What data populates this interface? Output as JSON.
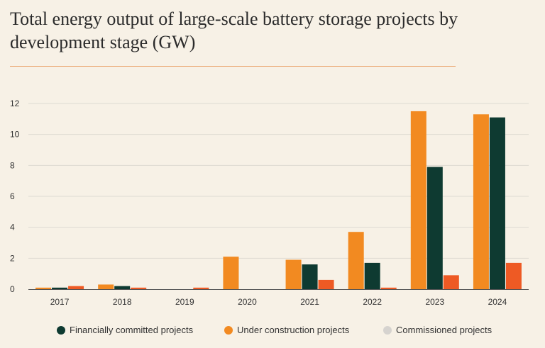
{
  "title": "Total energy output of large-scale battery storage projects by development stage (GW)",
  "colors": {
    "financially_committed": "#0e3a31",
    "under_construction": "#f28a21",
    "commissioned": "#ee5a24",
    "legend_commissioned": "#d6d3cf",
    "grid": "#dedad2",
    "axis": "#555555"
  },
  "chart_data": {
    "type": "bar",
    "title": "Total energy output of large-scale battery storage projects by development stage (GW)",
    "xlabel": "",
    "ylabel": "",
    "ylim": [
      0,
      12
    ],
    "yticks": [
      0,
      2,
      4,
      6,
      8,
      10,
      12
    ],
    "grid": true,
    "legend_position": "bottom",
    "categories": [
      "2017",
      "2018",
      "2019",
      "2020",
      "2021",
      "2022",
      "2023",
      "2024"
    ],
    "series": [
      {
        "name": "Under construction projects",
        "color_key": "under_construction",
        "values": [
          0.1,
          0.3,
          0,
          2.1,
          1.9,
          3.7,
          11.5,
          11.3
        ]
      },
      {
        "name": "Financially committed projects",
        "color_key": "financially_committed",
        "values": [
          0.1,
          0.2,
          0,
          0,
          1.6,
          1.7,
          7.9,
          11.1
        ]
      },
      {
        "name": "Commissioned projects",
        "color_key": "commissioned",
        "values": [
          0.2,
          0.1,
          0.1,
          0,
          0.6,
          0.1,
          0.9,
          1.7
        ]
      }
    ]
  },
  "legend": [
    {
      "label": "Financially committed projects",
      "color_key": "financially_committed"
    },
    {
      "label": "Under construction projects",
      "color_key": "under_construction"
    },
    {
      "label": "Commissioned projects",
      "color_key": "legend_commissioned"
    }
  ]
}
